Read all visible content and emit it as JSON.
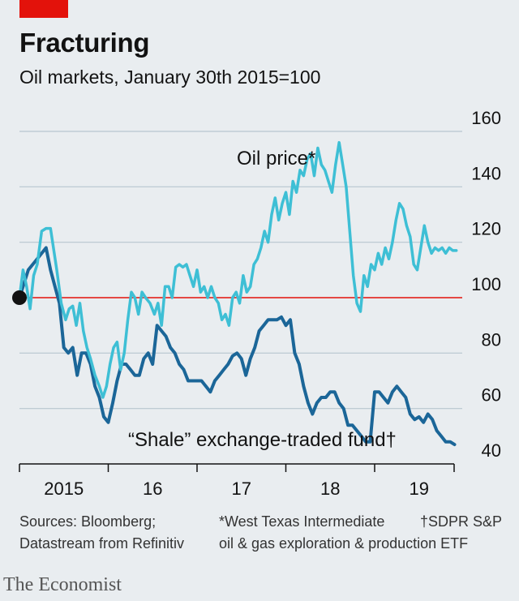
{
  "header": {
    "title": "Fracturing",
    "subtitle": "Oil markets, January 30th 2015=100"
  },
  "footer": {
    "sources": [
      "Sources: Bloomberg;",
      "Datastream from Refinitiv"
    ],
    "note_oil": [
      "*West Texas Intermediate",
      "oil & gas exploration & production ETF"
    ],
    "note_shale": "†SDPR S&P",
    "brand": "The Economist"
  },
  "colors": {
    "oil": "#3ebfd5",
    "shale": "#1b6698",
    "baseline": "#e3120b",
    "grid": "#b7c6cf",
    "accent": "#e3120b"
  },
  "chart_data": {
    "type": "line",
    "ylim": [
      40,
      160
    ],
    "xlim": [
      2015.0,
      2019.95
    ],
    "yticks": [
      "160",
      "140",
      "120",
      "100",
      "80",
      "60",
      "40"
    ],
    "ytick_values": [
      160,
      140,
      120,
      100,
      80,
      60,
      40
    ],
    "xticks": [
      "2015",
      "16",
      "17",
      "18",
      "19"
    ],
    "xtick_positions": [
      2015.5,
      2016.5,
      2017.5,
      2018.5,
      2019.5
    ],
    "baseline": 100,
    "start_marker": {
      "x": 2015.0,
      "y": 100
    },
    "series": [
      {
        "name": "Oil price*",
        "x": [
          2015.0,
          2015.04,
          2015.08,
          2015.12,
          2015.16,
          2015.2,
          2015.25,
          2015.3,
          2015.35,
          2015.42,
          2015.47,
          2015.52,
          2015.56,
          2015.6,
          2015.64,
          2015.68,
          2015.72,
          2015.76,
          2015.8,
          2015.85,
          2015.9,
          2015.94,
          2015.98,
          2016.02,
          2016.06,
          2016.1,
          2016.14,
          2016.18,
          2016.22,
          2016.26,
          2016.3,
          2016.34,
          2016.38,
          2016.42,
          2016.47,
          2016.52,
          2016.56,
          2016.6,
          2016.64,
          2016.68,
          2016.72,
          2016.76,
          2016.8,
          2016.84,
          2016.88,
          2016.92,
          2016.96,
          2017.0,
          2017.04,
          2017.08,
          2017.12,
          2017.16,
          2017.2,
          2017.24,
          2017.28,
          2017.32,
          2017.36,
          2017.4,
          2017.44,
          2017.48,
          2017.52,
          2017.56,
          2017.6,
          2017.64,
          2017.68,
          2017.72,
          2017.76,
          2017.8,
          2017.84,
          2017.88,
          2017.92,
          2017.96,
          2018.0,
          2018.04,
          2018.08,
          2018.12,
          2018.16,
          2018.2,
          2018.24,
          2018.28,
          2018.32,
          2018.36,
          2018.4,
          2018.44,
          2018.48,
          2018.52,
          2018.56,
          2018.6,
          2018.64,
          2018.68,
          2018.72,
          2018.76,
          2018.8,
          2018.84,
          2018.88,
          2018.92,
          2018.96,
          2019.0,
          2019.04,
          2019.08,
          2019.12,
          2019.16,
          2019.2,
          2019.24,
          2019.28,
          2019.32,
          2019.36,
          2019.4,
          2019.44,
          2019.48,
          2019.52,
          2019.56,
          2019.6,
          2019.64,
          2019.68,
          2019.72,
          2019.76,
          2019.8,
          2019.84,
          2019.88,
          2019.92
        ],
        "y": [
          100,
          110,
          104,
          96,
          108,
          112,
          124,
          125,
          125,
          110,
          98,
          92,
          96,
          97,
          90,
          98,
          88,
          82,
          78,
          72,
          68,
          64,
          68,
          76,
          82,
          84,
          74,
          80,
          92,
          102,
          100,
          94,
          102,
          100,
          98,
          94,
          98,
          90,
          104,
          104,
          100,
          111,
          112,
          111,
          112,
          108,
          104,
          110,
          102,
          104,
          100,
          104,
          100,
          98,
          92,
          94,
          90,
          100,
          102,
          98,
          108,
          102,
          104,
          112,
          114,
          118,
          124,
          120,
          130,
          136,
          128,
          134,
          138,
          130,
          142,
          138,
          146,
          144,
          150,
          152,
          144,
          154,
          148,
          146,
          142,
          138,
          148,
          156,
          148,
          140,
          124,
          108,
          98,
          95,
          108,
          104,
          112,
          110,
          116,
          112,
          118,
          114,
          120,
          128,
          134,
          132,
          126,
          122,
          112,
          110,
          118,
          126,
          120,
          116,
          118,
          117,
          118,
          116,
          118,
          117,
          117
        ],
        "color": "#3ebfd5"
      },
      {
        "name": "“Shale” exchange-traded fund†",
        "x": [
          2015.0,
          2015.05,
          2015.1,
          2015.15,
          2015.2,
          2015.25,
          2015.3,
          2015.35,
          2015.4,
          2015.45,
          2015.5,
          2015.55,
          2015.6,
          2015.65,
          2015.7,
          2015.75,
          2015.8,
          2015.85,
          2015.9,
          2015.95,
          2016.0,
          2016.05,
          2016.1,
          2016.15,
          2016.2,
          2016.25,
          2016.3,
          2016.35,
          2016.4,
          2016.45,
          2016.5,
          2016.55,
          2016.6,
          2016.65,
          2016.7,
          2016.75,
          2016.8,
          2016.85,
          2016.9,
          2016.95,
          2017.0,
          2017.05,
          2017.1,
          2017.15,
          2017.2,
          2017.25,
          2017.3,
          2017.35,
          2017.4,
          2017.45,
          2017.5,
          2017.55,
          2017.6,
          2017.65,
          2017.7,
          2017.75,
          2017.8,
          2017.85,
          2017.9,
          2017.95,
          2018.0,
          2018.05,
          2018.1,
          2018.15,
          2018.2,
          2018.25,
          2018.3,
          2018.35,
          2018.4,
          2018.45,
          2018.5,
          2018.55,
          2018.6,
          2018.65,
          2018.7,
          2018.75,
          2018.8,
          2018.85,
          2018.9,
          2018.95,
          2019.0,
          2019.05,
          2019.1,
          2019.15,
          2019.2,
          2019.25,
          2019.3,
          2019.35,
          2019.4,
          2019.45,
          2019.5,
          2019.55,
          2019.6,
          2019.65,
          2019.7,
          2019.75,
          2019.8,
          2019.85,
          2019.9
        ],
        "y": [
          100,
          105,
          110,
          112,
          114,
          116,
          118,
          110,
          104,
          98,
          82,
          80,
          82,
          72,
          80,
          80,
          76,
          68,
          64,
          57,
          55,
          62,
          70,
          76,
          76,
          74,
          72,
          72,
          78,
          80,
          76,
          90,
          88,
          86,
          82,
          80,
          76,
          74,
          70,
          70,
          70,
          70,
          68,
          66,
          70,
          72,
          74,
          76,
          79,
          80,
          78,
          72,
          78,
          82,
          88,
          90,
          92,
          92,
          92,
          93,
          90,
          92,
          80,
          76,
          68,
          62,
          58,
          62,
          64,
          64,
          66,
          66,
          62,
          60,
          54,
          54,
          52,
          50,
          48,
          48,
          66,
          66,
          64,
          62,
          66,
          68,
          66,
          64,
          58,
          56,
          57,
          55,
          58,
          56,
          52,
          50,
          48,
          48,
          47
        ],
        "color": "#1b6698"
      }
    ],
    "annotations": [
      {
        "text": "Oil price*",
        "x": 2018.8,
        "y": 148
      },
      {
        "text": "“Shale” exchange-traded fund†",
        "x": 2019.0,
        "y": 49
      }
    ],
    "grid": true,
    "legend": "none"
  }
}
